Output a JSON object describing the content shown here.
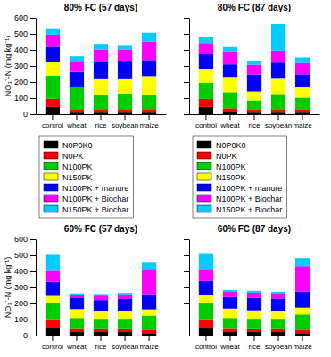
{
  "chart_data": [
    {
      "type": "bar",
      "title": "80% FC (57 days)",
      "stacked": true,
      "legend": "bottom",
      "categories": [
        "control",
        "wheat",
        "rice",
        "soybean",
        "maize"
      ],
      "ylabel": "NO₃⁻-N (mg kg⁻¹)",
      "ylim": [
        0,
        600
      ],
      "yticks": [
        0,
        100,
        200,
        300,
        400,
        500,
        600
      ],
      "series": [
        {
          "name": "N0P0K0",
          "color": "#000000",
          "values": [
            45,
            10,
            10,
            10,
            10
          ]
        },
        {
          "name": "N0PK",
          "color": "#ff0000",
          "values": [
            50,
            18,
            18,
            18,
            22
          ]
        },
        {
          "name": "N100PK",
          "color": "#00cc00",
          "values": [
            145,
            140,
            90,
            100,
            90
          ]
        },
        {
          "name": "N150PK",
          "color": "#ffff00",
          "values": [
            85,
            0,
            105,
            95,
            115
          ]
        },
        {
          "name": "N100PK + manure",
          "color": "#0000ff",
          "values": [
            95,
            95,
            105,
            110,
            100
          ]
        },
        {
          "name": "N100PK + Biochar",
          "color": "#ff00ff",
          "values": [
            75,
            62,
            75,
            68,
            115
          ]
        },
        {
          "name": "N150PK + Biochar",
          "color": "#00ccff",
          "values": [
            40,
            35,
            35,
            30,
            55
          ]
        }
      ]
    },
    {
      "type": "bar",
      "title": "80% FC (87 days)",
      "stacked": true,
      "legend": "bottom",
      "tick_labels": "x",
      "categories": [
        "control",
        "wheat",
        "rice",
        "soybean",
        "maize"
      ],
      "ylim": [
        0,
        600
      ],
      "yticks": [
        0,
        100,
        200,
        300,
        400,
        500,
        600
      ],
      "series": [
        {
          "name": "N0P0K0",
          "color": "#000000",
          "values": [
            45,
            15,
            10,
            10,
            10
          ]
        },
        {
          "name": "N0PK",
          "color": "#ff0000",
          "values": [
            50,
            22,
            18,
            18,
            18
          ]
        },
        {
          "name": "N100PK",
          "color": "#00cc00",
          "values": [
            100,
            100,
            58,
            98,
            75
          ]
        },
        {
          "name": "N150PK",
          "color": "#ffff00",
          "values": [
            88,
            95,
            55,
            100,
            65
          ]
        },
        {
          "name": "N100PK + manure",
          "color": "#0000ff",
          "values": [
            90,
            78,
            105,
            95,
            80
          ]
        },
        {
          "name": "N100PK + Biochar",
          "color": "#ff00ff",
          "values": [
            70,
            80,
            62,
            75,
            70
          ]
        },
        {
          "name": "N150PK + Biochar",
          "color": "#00ccff",
          "values": [
            35,
            28,
            25,
            165,
            35
          ]
        }
      ]
    },
    {
      "type": "bar",
      "title": "60% FC (57 days)",
      "stacked": true,
      "categories": [
        "control",
        "wheat",
        "rice",
        "soybean",
        "maize"
      ],
      "ylabel": "NO₃⁻-N (mg kg⁻¹)",
      "ylim": [
        0,
        600
      ],
      "yticks": [
        0,
        100,
        200,
        300,
        400,
        500,
        600
      ],
      "series": [
        {
          "color": "#000000",
          "values": [
            50,
            22,
            22,
            22,
            15
          ]
        },
        {
          "color": "#ff0000",
          "values": [
            52,
            20,
            18,
            18,
            22
          ]
        },
        {
          "color": "#00cc00",
          "values": [
            100,
            68,
            65,
            65,
            88
          ]
        },
        {
          "color": "#ffff00",
          "values": [
            45,
            55,
            48,
            48,
            38
          ]
        },
        {
          "color": "#0000ff",
          "values": [
            88,
            72,
            68,
            75,
            95
          ]
        },
        {
          "color": "#ff00ff",
          "values": [
            68,
            18,
            28,
            28,
            148
          ]
        },
        {
          "color": "#00ccff",
          "values": [
            100,
            8,
            10,
            10,
            48
          ]
        }
      ]
    },
    {
      "type": "bar",
      "title": "60% FC (87 days)",
      "stacked": true,
      "tick_labels": "x",
      "categories": [
        "control",
        "wheat",
        "rice",
        "soybean",
        "maize"
      ],
      "ylim": [
        0,
        600
      ],
      "yticks": [
        0,
        100,
        200,
        300,
        400,
        500,
        600
      ],
      "series": [
        {
          "color": "#000000",
          "values": [
            50,
            22,
            22,
            22,
            15
          ]
        },
        {
          "color": "#ff0000",
          "values": [
            52,
            20,
            18,
            18,
            22
          ]
        },
        {
          "color": "#00cc00",
          "values": [
            100,
            68,
            65,
            65,
            95
          ]
        },
        {
          "color": "#ffff00",
          "values": [
            50,
            58,
            52,
            48,
            42
          ]
        },
        {
          "color": "#0000ff",
          "values": [
            88,
            72,
            78,
            78,
            100
          ]
        },
        {
          "color": "#ff00ff",
          "values": [
            68,
            32,
            32,
            30,
            158
          ]
        },
        {
          "color": "#00ccff",
          "values": [
            100,
            12,
            12,
            12,
            50
          ]
        }
      ]
    }
  ]
}
